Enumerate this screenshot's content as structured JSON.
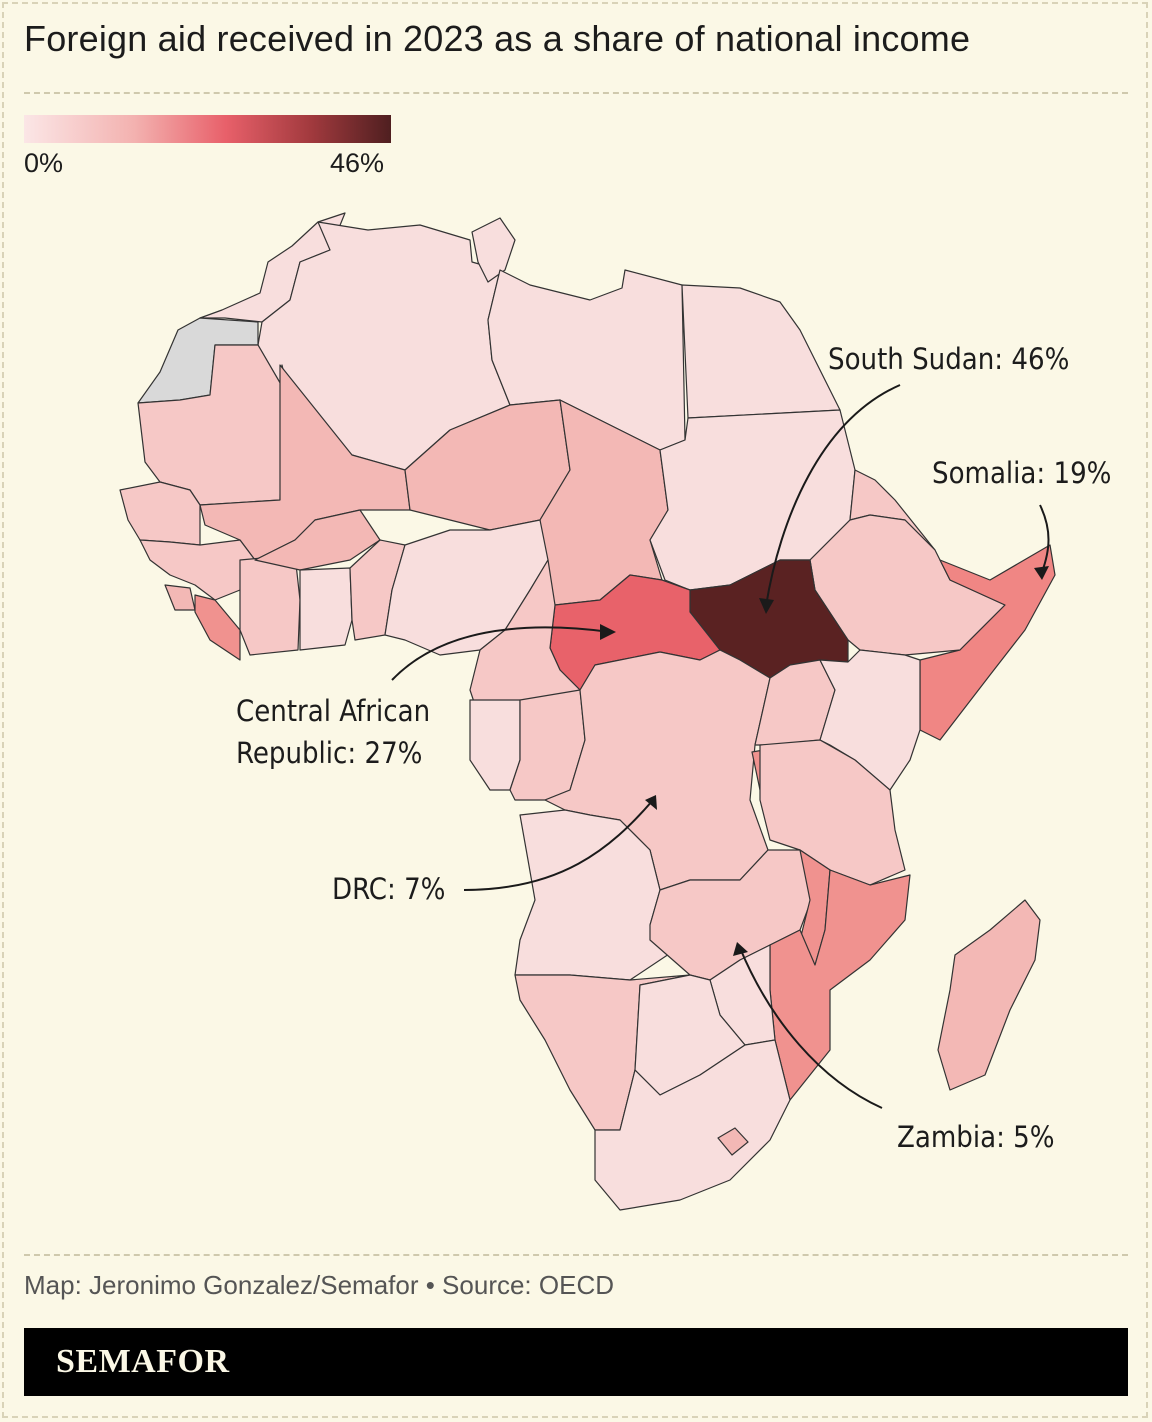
{
  "title": "Foreign aid received in 2023 as a share of national income",
  "legend": {
    "min_label": "0%",
    "max_label": "46%",
    "scale_colors": [
      "#fbe6e6",
      "#f3b2b0",
      "#e8606a",
      "#a23a3e",
      "#4f1f20"
    ]
  },
  "callouts": {
    "south_sudan": "South Sudan: 46%",
    "somalia": "Somalia: 19%",
    "car_line1": "Central African",
    "car_line2": "Republic: 27%",
    "drc": "DRC: 7%",
    "zambia": "Zambia: 5%"
  },
  "colors": {
    "background": "#fbf8e6",
    "no_data": "#d9d9d9",
    "very_low": "#f8dedd",
    "low": "#f6c8c6",
    "mid_low": "#f3b8b5",
    "mid": "#f0928f",
    "high": "#e8626a",
    "max": "#5a2222"
  },
  "footer": {
    "credit": "Map: Jeronimo Gonzalez/Semafor • Source: OECD",
    "brand": "SEMAFOR"
  }
}
